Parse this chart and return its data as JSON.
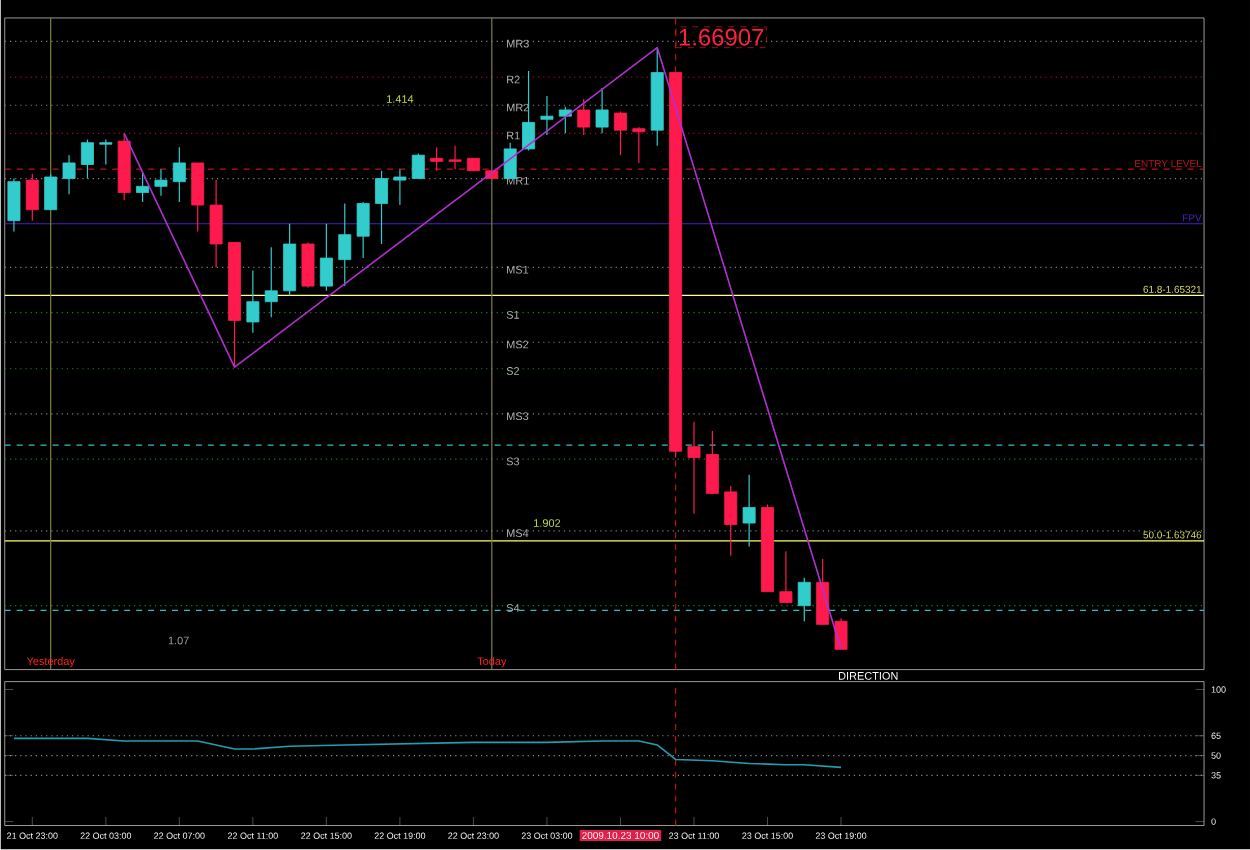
{
  "chart_data": [
    {
      "type": "candlestick",
      "x": [
        "2009-10-21T22:00",
        "2009-10-21T23:00",
        "2009-10-22T00:00",
        "2009-10-22T01:00",
        "2009-10-22T02:00",
        "2009-10-22T03:00",
        "2009-10-22T04:00",
        "2009-10-22T05:00",
        "2009-10-22T06:00",
        "2009-10-22T07:00",
        "2009-10-22T08:00",
        "2009-10-22T09:00",
        "2009-10-22T10:00",
        "2009-10-22T11:00",
        "2009-10-22T12:00",
        "2009-10-22T13:00",
        "2009-10-22T14:00",
        "2009-10-22T15:00",
        "2009-10-22T16:00",
        "2009-10-22T17:00",
        "2009-10-22T18:00",
        "2009-10-22T19:00",
        "2009-10-22T20:00",
        "2009-10-22T21:00",
        "2009-10-22T22:00",
        "2009-10-22T23:00",
        "2009-10-23T00:00",
        "2009-10-23T01:00",
        "2009-10-23T02:00",
        "2009-10-23T03:00",
        "2009-10-23T04:00",
        "2009-10-23T05:00",
        "2009-10-23T06:00",
        "2009-10-23T07:00",
        "2009-10-23T08:00",
        "2009-10-23T09:00",
        "2009-10-23T10:00",
        "2009-10-23T11:00",
        "2009-10-23T12:00",
        "2009-10-23T13:00",
        "2009-10-23T14:00",
        "2009-10-23T15:00",
        "2009-10-23T16:00",
        "2009-10-23T17:00",
        "2009-10-23T18:00",
        "2009-10-23T19:00"
      ],
      "ohlc": [
        [
          1.658,
          1.6607,
          1.6573,
          1.6605
        ],
        [
          1.6606,
          1.661,
          1.658,
          1.6587
        ],
        [
          1.6587,
          1.661,
          1.6587,
          1.6608
        ],
        [
          1.6607,
          1.6622,
          1.6597,
          1.6617
        ],
        [
          1.6616,
          1.6632,
          1.6607,
          1.663
        ],
        [
          1.6629,
          1.6632,
          1.6616,
          1.663
        ],
        [
          1.6631,
          1.6636,
          1.6593,
          1.6598
        ],
        [
          1.6598,
          1.6611,
          1.6592,
          1.6602
        ],
        [
          1.6602,
          1.6613,
          1.6596,
          1.6606
        ],
        [
          1.6605,
          1.6627,
          1.6592,
          1.6617
        ],
        [
          1.6617,
          1.6617,
          1.6573,
          1.659
        ],
        [
          1.659,
          1.6606,
          1.655,
          1.6565
        ],
        [
          1.6566,
          1.6566,
          1.6486,
          1.6516
        ],
        [
          1.6515,
          1.6548,
          1.6508,
          1.6528
        ],
        [
          1.6528,
          1.6563,
          1.6518,
          1.6535
        ],
        [
          1.6535,
          1.6578,
          1.6532,
          1.6565
        ],
        [
          1.6565,
          1.6566,
          1.6537,
          1.6538
        ],
        [
          1.6538,
          1.6578,
          1.6535,
          1.6556
        ],
        [
          1.6555,
          1.6591,
          1.6538,
          1.6571
        ],
        [
          1.657,
          1.6592,
          1.6556,
          1.6591
        ],
        [
          1.6591,
          1.6612,
          1.6565,
          1.6607
        ],
        [
          1.6606,
          1.6613,
          1.659,
          1.6608
        ],
        [
          1.6607,
          1.6623,
          1.6607,
          1.6622
        ],
        [
          1.662,
          1.6627,
          1.6612,
          1.6618
        ],
        [
          1.6619,
          1.6628,
          1.6613,
          1.6618
        ],
        [
          1.662,
          1.662,
          1.6612,
          1.6612
        ],
        [
          1.6612,
          1.6612,
          1.6607,
          1.6607
        ],
        [
          1.6607,
          1.663,
          1.6607,
          1.6626
        ],
        [
          1.6626,
          1.6676,
          1.6625,
          1.6643
        ],
        [
          1.6645,
          1.666,
          1.6635,
          1.6647
        ],
        [
          1.6647,
          1.6653,
          1.6636,
          1.6651
        ],
        [
          1.6651,
          1.6658,
          1.6635,
          1.664
        ],
        [
          1.664,
          1.6665,
          1.6636,
          1.6651
        ],
        [
          1.6649,
          1.665,
          1.6622,
          1.6638
        ],
        [
          1.6639,
          1.664,
          1.6617,
          1.6637
        ],
        [
          1.6638,
          1.66907,
          1.6628,
          1.6675
        ],
        [
          1.6675,
          1.6675,
          1.6428,
          1.6432
        ],
        [
          1.6435,
          1.6451,
          1.6392,
          1.6428
        ],
        [
          1.643,
          1.6445,
          1.6405,
          1.6405
        ],
        [
          1.6406,
          1.641,
          1.6365,
          1.6385
        ],
        [
          1.6386,
          1.6417,
          1.6371,
          1.6396
        ],
        [
          1.6396,
          1.6398,
          1.6342,
          1.6342
        ],
        [
          1.6342,
          1.6368,
          1.6335,
          1.6335
        ],
        [
          1.6333,
          1.6351,
          1.6323,
          1.6348
        ],
        [
          1.6348,
          1.6363,
          1.6321,
          1.6321
        ],
        [
          1.6323,
          1.6325,
          1.6305,
          1.6305
        ]
      ],
      "colors": [
        "#33cccc",
        "#ff1a4d",
        "#33cccc",
        "#33cccc",
        "#33cccc",
        "#33cccc",
        "#ff1a4d",
        "#33cccc",
        "#33cccc",
        "#33cccc",
        "#ff1a4d",
        "#ff1a4d",
        "#ff1a4d",
        "#33cccc",
        "#33cccc",
        "#33cccc",
        "#ff1a4d",
        "#33cccc",
        "#33cccc",
        "#33cccc",
        "#33cccc",
        "#33cccc",
        "#33cccc",
        "#ff1a4d",
        "#ff1a4d",
        "#ff1a4d",
        "#ff1a4d",
        "#33cccc",
        "#33cccc",
        "#33cccc",
        "#33cccc",
        "#ff1a4d",
        "#33cccc",
        "#ff1a4d",
        "#ff1a4d",
        "#33cccc",
        "#ff1a4d",
        "#ff1a4d",
        "#ff1a4d",
        "#ff1a4d",
        "#33cccc",
        "#ff1a4d",
        "#ff1a4d",
        "#33cccc",
        "#ff1a4d",
        "#ff1a4d"
      ],
      "series": [
        {
          "type": "line",
          "color": "#b030d0",
          "x": [
            "2009-10-22T04:00",
            "2009-10-22T10:00",
            "2009-10-23T09:00",
            "2009-10-23T19:00"
          ],
          "values": [
            1.6636,
            1.6486,
            1.6691,
            1.6305
          ]
        }
      ],
      "xlim": [
        "2009-10-21T21:30",
        "2009-10-24T14:45"
      ],
      "ylim": [
        1.6292,
        1.671
      ],
      "tick_labels": false,
      "ref_lines": [
        {
          "axis": "y",
          "value": 1.6695,
          "label": "MR3",
          "color": "#808080",
          "line_style": "dotted"
        },
        {
          "axis": "y",
          "value": 1.6672,
          "label": "R2",
          "color": "#a01020",
          "line_style": "dotted"
        },
        {
          "axis": "y",
          "value": 1.6654,
          "label": "MR2",
          "color": "#808080",
          "line_style": "dotted"
        },
        {
          "axis": "y",
          "value": 1.6636,
          "label": "R1",
          "color": "#a01020",
          "line_style": "dotted"
        },
        {
          "axis": "y",
          "value": 1.6607,
          "label": "MR1",
          "color": "#808080",
          "line_style": "dotted"
        },
        {
          "axis": "y",
          "value": 1.6613,
          "label": "ENTRY LEVEL",
          "color": "#c01020",
          "line_style": "dashed"
        },
        {
          "axis": "y",
          "value": 1.6578,
          "label": "FPV",
          "color": "#5020c0",
          "line_style": "solid"
        },
        {
          "axis": "y",
          "value": 1.655,
          "label": "MS1",
          "color": "#808080",
          "line_style": "dotted"
        },
        {
          "axis": "y",
          "value": 1.65321,
          "color": "#ffffa0",
          "line_style": "solid"
        },
        {
          "axis": "y",
          "value": 1.6521,
          "label": "S1",
          "color": "#208020",
          "line_style": "dotted"
        },
        {
          "axis": "y",
          "value": 1.6502,
          "label": "MS2",
          "color": "#808080",
          "line_style": "dotted"
        },
        {
          "axis": "y",
          "value": 1.6485,
          "label": "S2",
          "color": "#208020",
          "line_style": "dotted"
        },
        {
          "axis": "y",
          "value": 1.6456,
          "label": "MS3",
          "color": "#808080",
          "line_style": "dotted"
        },
        {
          "axis": "y",
          "value": 1.6436,
          "color": "#30c0c0",
          "line_style": "dashed"
        },
        {
          "axis": "y",
          "value": 1.6427,
          "label": "S3",
          "color": "#208020",
          "line_style": "dotted"
        },
        {
          "axis": "y",
          "value": 1.6381,
          "label": "MS4",
          "color": "#808080",
          "line_style": "dotted"
        },
        {
          "axis": "y",
          "value": 1.63746,
          "color": "#ffff60",
          "line_style": "solid"
        },
        {
          "axis": "y",
          "value": 1.6333,
          "label": "S4",
          "color": "#208020",
          "line_style": "dotted"
        },
        {
          "axis": "y",
          "value": 1.633,
          "color": "#30c0c0",
          "line_style": "dashed"
        },
        {
          "axis": "x",
          "value": "2009-10-22T00:00",
          "label": "Yesterday",
          "color": "#808040",
          "line_style": "solid"
        },
        {
          "axis": "x",
          "value": "2009-10-23T00:00",
          "label": "Today",
          "color": "#808040",
          "line_style": "solid"
        },
        {
          "axis": "x",
          "value": "2009-10-23T10:00",
          "color": "#c01010",
          "line_style": "dashed"
        }
      ],
      "annotations": [
        {
          "text": "1.66907",
          "x": "2009-10-23T10:00",
          "y": 1.66907
        },
        {
          "text": "1.414",
          "x": "2009-10-22T19:00",
          "y": 1.6658
        },
        {
          "text": "1.902",
          "x": "2009-10-23T03:00",
          "y": 1.6386
        },
        {
          "text": "61.8-1.65321",
          "x": "2009-10-24T14:45",
          "y": 1.65321
        },
        {
          "text": "50.0-1.63746",
          "x": "2009-10-24T14:45",
          "y": 1.63746
        },
        "1.07",
        "DIRECTION"
      ]
    },
    {
      "type": "line",
      "series": [
        {
          "color": "#1fa0b0",
          "x": [
            "2009-10-21T22:00",
            "2009-10-22T02:00",
            "2009-10-22T04:00",
            "2009-10-22T08:00",
            "2009-10-22T10:00",
            "2009-10-22T11:00",
            "2009-10-22T13:00",
            "2009-10-22T16:00",
            "2009-10-22T23:00",
            "2009-10-23T03:00",
            "2009-10-23T06:00",
            "2009-10-23T08:00",
            "2009-10-23T09:00",
            "2009-10-23T10:00",
            "2009-10-23T12:00",
            "2009-10-23T14:00",
            "2009-10-23T16:00",
            "2009-10-23T17:00",
            "2009-10-23T19:00"
          ],
          "values": [
            63,
            63,
            61,
            61,
            55,
            55,
            57,
            58,
            60,
            60,
            61,
            61,
            58,
            47,
            46,
            44,
            43,
            43,
            41
          ]
        }
      ],
      "xlim": [
        "2009-10-21T21:30",
        "2009-10-24T14:45"
      ],
      "ylim": [
        -3,
        106
      ],
      "yticks": [
        0,
        35,
        50,
        65,
        100
      ],
      "xticks": [
        {
          "value": "2009-10-21T23:00",
          "label": "21 Oct 23:00"
        },
        {
          "value": "2009-10-22T03:00",
          "label": "22 Oct 03:00"
        },
        {
          "value": "2009-10-22T07:00",
          "label": "22 Oct 07:00"
        },
        {
          "value": "2009-10-22T11:00",
          "label": "22 Oct 11:00"
        },
        {
          "value": "2009-10-22T15:00",
          "label": "22 Oct 15:00"
        },
        {
          "value": "2009-10-22T19:00",
          "label": "22 Oct 19:00"
        },
        {
          "value": "2009-10-22T23:00",
          "label": "22 Oct 23:00"
        },
        {
          "value": "2009-10-23T03:00",
          "label": "23 Oct 03:00"
        },
        {
          "value": "2009-10-23T07:00",
          "label": null
        },
        {
          "value": "2009-10-23T11:00",
          "label": "23 Oct 11:00"
        },
        {
          "value": "2009-10-23T15:00",
          "label": "23 Oct 15:00"
        },
        {
          "value": "2009-10-23T19:00",
          "label": "23 Oct 19:00"
        }
      ],
      "ref_lines": [
        {
          "axis": "y",
          "value": 65,
          "color": "#909090",
          "line_style": "dotted"
        },
        {
          "axis": "y",
          "value": 50,
          "color": "#909090",
          "line_style": "dotted"
        },
        {
          "axis": "y",
          "value": 35,
          "color": "#909090",
          "line_style": "dotted"
        },
        {
          "axis": "x",
          "value": "2009-10-23T10:00",
          "label": "2009.10.23 10:00",
          "color": "#c01010",
          "line_style": "dashed"
        }
      ]
    }
  ]
}
